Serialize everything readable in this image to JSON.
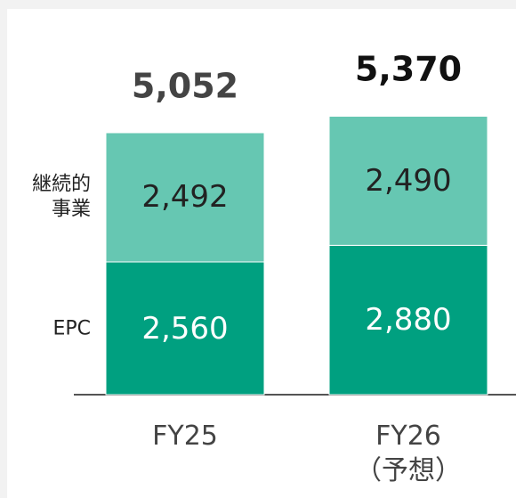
{
  "chart_data": {
    "type": "stacked_bar",
    "categories": [
      "FY25",
      "FY26\n（予想）"
    ],
    "series": [
      {
        "name": "EPC",
        "color": "#00a080",
        "label_color": "#ffffff",
        "values": [
          2560,
          2880
        ],
        "value_labels": [
          "2,560",
          "2,880"
        ]
      },
      {
        "name": "継続的\n事業",
        "color": "#66c7b2",
        "label_color": "#222222",
        "values": [
          2492,
          2490
        ],
        "value_labels": [
          "2,492",
          "2,490"
        ]
      }
    ],
    "totals": [
      5052,
      5370
    ],
    "total_labels": [
      "5,052",
      "5,370"
    ],
    "total_colors": [
      "#444444",
      "#111111"
    ]
  }
}
